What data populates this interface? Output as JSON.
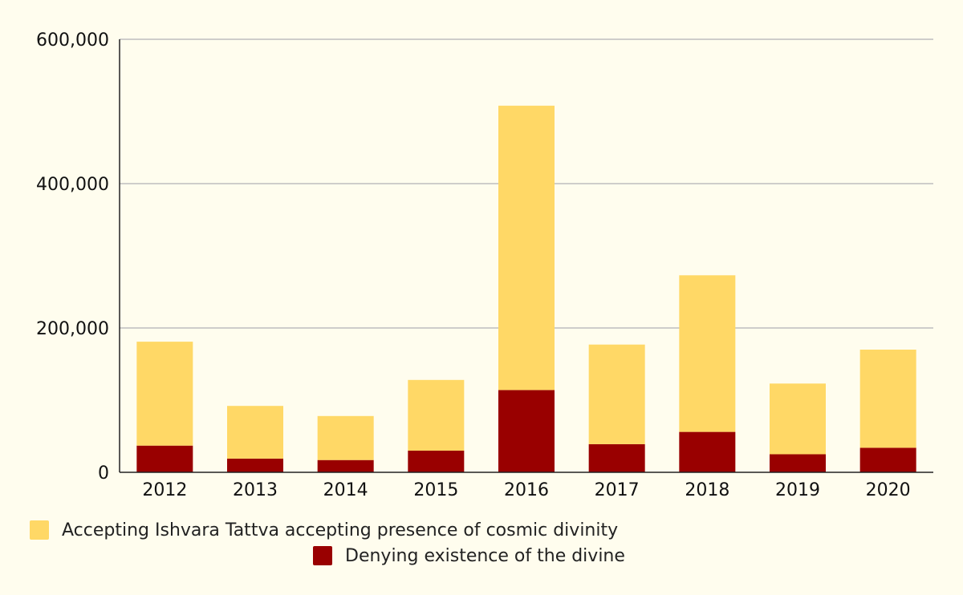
{
  "chart_data": {
    "type": "bar",
    "stacked": true,
    "categories": [
      "2012",
      "2013",
      "2014",
      "2015",
      "2016",
      "2017",
      "2018",
      "2019",
      "2020"
    ],
    "series": [
      {
        "name": "Denying existence of the divine",
        "color": "#990000",
        "values": [
          37000,
          19000,
          17000,
          30000,
          114000,
          39000,
          56000,
          25000,
          34000
        ]
      },
      {
        "name": "Accepting Ishvara Tattva accepting presence of cosmic divinity",
        "color": "#ffd866",
        "values": [
          144000,
          73000,
          61000,
          98000,
          394000,
          138000,
          217000,
          98000,
          136000
        ]
      }
    ],
    "y_ticks": [
      0,
      200000,
      400000,
      600000
    ],
    "y_tick_labels": [
      "0",
      "200,000",
      "400,000",
      "600,000"
    ],
    "ylim": [
      0,
      600000
    ],
    "grid": true,
    "legend_position": "bottom"
  },
  "legend": {
    "accepting_label": "Accepting Ishvara Tattva accepting presence of cosmic divinity",
    "denying_label": "Denying existence of the divine",
    "accepting_color": "#ffd866",
    "denying_color": "#990000"
  }
}
